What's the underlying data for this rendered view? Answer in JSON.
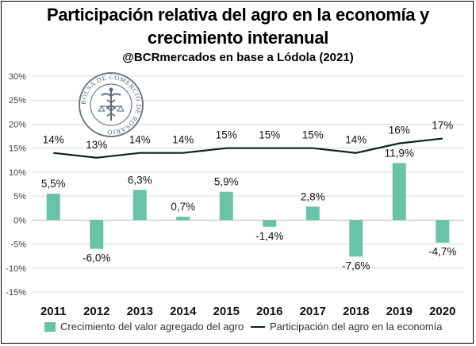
{
  "title_line1": "Participación relativa del agro en la economía y",
  "title_line2": "crecimiento interanual",
  "subtitle": "@BCRmercados en base a Lódola (2021)",
  "seal_text": "BOLSA DE COMERCIO DE ROSARIO",
  "colors": {
    "bar": "#68c3a8",
    "line": "#0d2418",
    "grid": "#d9d9d9"
  },
  "chart_data": {
    "type": "bar",
    "categories": [
      "2011",
      "2012",
      "2013",
      "2014",
      "2015",
      "2016",
      "2017",
      "2018",
      "2019",
      "2020"
    ],
    "series": [
      {
        "name": "Crecimiento del valor agregado del agro",
        "kind": "bar",
        "values": [
          5.5,
          -6.0,
          6.3,
          0.7,
          5.9,
          -1.4,
          2.8,
          -7.6,
          11.9,
          -4.7
        ],
        "labels": [
          "5,5%",
          "-6,0%",
          "6,3%",
          "0,7%",
          "5,9%",
          "-1,4%",
          "2,8%",
          "-7,6%",
          "11,9%",
          "-4,7%"
        ]
      },
      {
        "name": "Participación del agro en la economía",
        "kind": "line",
        "values": [
          14,
          13,
          14,
          14,
          15,
          15,
          15,
          14,
          16,
          17
        ],
        "labels": [
          "14%",
          "13%",
          "14%",
          "14%",
          "15%",
          "15%",
          "15%",
          "14%",
          "16%",
          "17%"
        ]
      }
    ],
    "yticks": [
      30,
      25,
      20,
      15,
      10,
      5,
      0,
      -5,
      -10,
      -15
    ],
    "ytick_labels": [
      "30%",
      "25%",
      "20%",
      "15%",
      "10%",
      "5%",
      "0%",
      "-5%",
      "-10%",
      "-15%"
    ],
    "ylim": [
      -15,
      30
    ],
    "grid": true,
    "legend_position": "bottom"
  }
}
